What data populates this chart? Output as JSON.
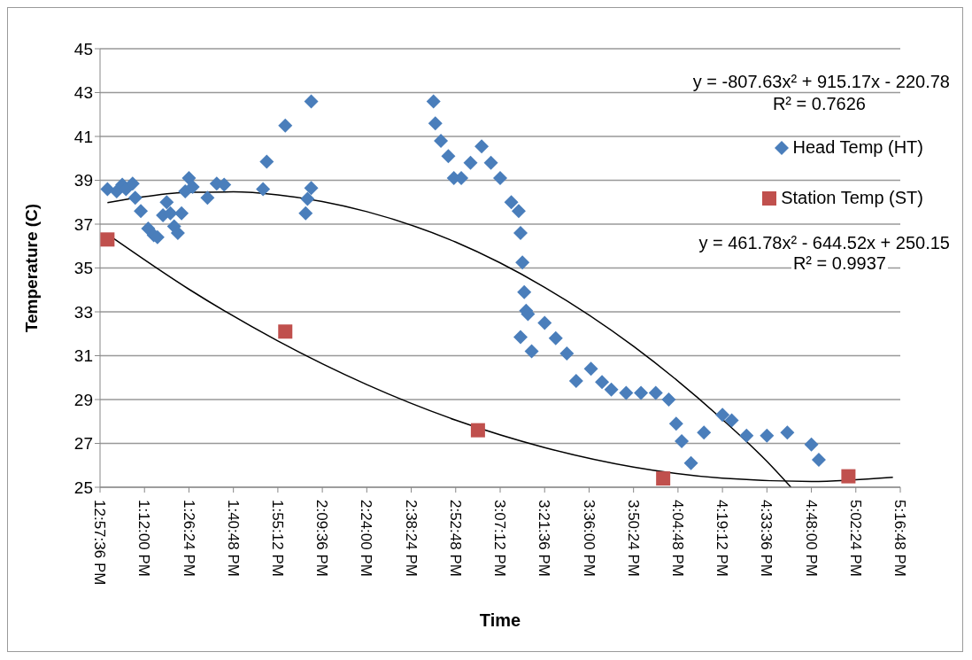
{
  "chart_data": {
    "type": "scatter",
    "xlabel": "Time",
    "ylabel": "Temperature (C)",
    "xlim": [
      12.96,
      17.28
    ],
    "ylim": [
      25,
      45
    ],
    "xticks": [
      {
        "value": 12.96,
        "label": "12:57:36 PM"
      },
      {
        "value": 13.2,
        "label": "1:12:00 PM"
      },
      {
        "value": 13.44,
        "label": "1:26:24 PM"
      },
      {
        "value": 13.68,
        "label": "1:40:48 PM"
      },
      {
        "value": 13.92,
        "label": "1:55:12 PM"
      },
      {
        "value": 14.16,
        "label": "2:09:36 PM"
      },
      {
        "value": 14.4,
        "label": "2:24:00 PM"
      },
      {
        "value": 14.64,
        "label": "2:38:24 PM"
      },
      {
        "value": 14.88,
        "label": "2:52:48 PM"
      },
      {
        "value": 15.12,
        "label": "3:07:12 PM"
      },
      {
        "value": 15.36,
        "label": "3:21:36 PM"
      },
      {
        "value": 15.6,
        "label": "3:36:00 PM"
      },
      {
        "value": 15.84,
        "label": "3:50:24 PM"
      },
      {
        "value": 16.08,
        "label": "4:04:48 PM"
      },
      {
        "value": 16.32,
        "label": "4:19:12 PM"
      },
      {
        "value": 16.56,
        "label": "4:33:36 PM"
      },
      {
        "value": 16.8,
        "label": "4:48:00 PM"
      },
      {
        "value": 17.04,
        "label": "5:02:24 PM"
      },
      {
        "value": 17.28,
        "label": "5:16:48 PM"
      }
    ],
    "yticks": [
      25,
      27,
      29,
      31,
      33,
      35,
      37,
      39,
      41,
      43,
      45
    ],
    "grid": "y",
    "legend": "right",
    "annotations": [
      "y = -807.63x² + 915.17x - 220.78",
      "R² = 0.7626",
      "y = 461.78x² - 644.52x + 250.15",
      "R² = 0.9937"
    ],
    "series": [
      {
        "name": "Head Temp (HT)",
        "color": "#4a7ebb",
        "marker": "diamond",
        "x": [
          13.0,
          13.05,
          13.08,
          13.1,
          13.136,
          13.15,
          13.18,
          13.22,
          13.25,
          13.27,
          13.3,
          13.32,
          13.34,
          13.36,
          13.38,
          13.4,
          13.42,
          13.44,
          13.46,
          13.54,
          13.59,
          13.63,
          13.84,
          13.86,
          13.96,
          14.07,
          14.08,
          14.1,
          14.1,
          14.76,
          14.77,
          14.8,
          14.84,
          14.87,
          14.91,
          14.96,
          15.02,
          15.07,
          15.12,
          15.18,
          15.22,
          15.23,
          15.24,
          15.25,
          15.26,
          15.27,
          15.23,
          15.29,
          15.36,
          15.42,
          15.48,
          15.53,
          15.61,
          15.67,
          15.72,
          15.8,
          15.88,
          15.96,
          16.03,
          16.07,
          16.1,
          16.15,
          16.22,
          16.32,
          16.37,
          16.45,
          16.56,
          16.67,
          16.8,
          16.84
        ],
        "values": [
          38.6,
          38.5,
          38.8,
          38.6,
          38.85,
          38.2,
          37.6,
          36.8,
          36.5,
          36.4,
          37.4,
          38.0,
          37.5,
          36.9,
          36.6,
          37.5,
          38.5,
          39.1,
          38.7,
          38.2,
          38.85,
          38.8,
          38.6,
          39.85,
          41.5,
          37.5,
          38.15,
          38.65,
          42.6,
          42.6,
          41.6,
          40.8,
          40.1,
          39.1,
          39.1,
          39.8,
          40.55,
          39.8,
          39.1,
          38.0,
          37.6,
          36.6,
          35.25,
          33.9,
          33.05,
          32.9,
          31.85,
          31.2,
          32.5,
          31.8,
          31.1,
          29.85,
          30.4,
          29.8,
          29.45,
          29.3,
          29.3,
          29.3,
          29.0,
          27.9,
          27.1,
          26.1,
          27.5,
          28.3,
          28.05,
          27.35,
          27.35,
          27.5,
          26.95,
          26.25
        ]
      },
      {
        "name": "Station Temp (ST)",
        "color": "#c0504d",
        "marker": "square",
        "x": [
          13.0,
          13.96,
          15.0,
          16.0,
          17.0
        ],
        "values": [
          36.3,
          32.1,
          27.6,
          25.4,
          25.5
        ]
      },
      {
        "type": "line",
        "color": "#000000",
        "line_style": "solid",
        "marker": "none",
        "x": [
          13.0,
          13.2,
          13.44,
          13.68,
          13.92,
          14.16,
          14.4,
          14.88,
          15.36,
          15.84,
          16.32,
          16.56,
          16.69
        ],
        "values": [
          37.98,
          38.25,
          38.45,
          38.47,
          38.33,
          38.03,
          37.57,
          36.18,
          34.12,
          31.43,
          28.09,
          26.18,
          25.0
        ]
      },
      {
        "type": "line",
        "color": "#000000",
        "line_style": "solid",
        "marker": "none",
        "x": [
          13.0,
          13.44,
          13.92,
          14.4,
          14.88,
          15.36,
          15.84,
          16.32,
          16.8,
          17.24
        ],
        "values": [
          36.54,
          34.03,
          31.67,
          29.68,
          28.06,
          26.81,
          25.92,
          25.41,
          25.26,
          25.45
        ]
      }
    ]
  }
}
